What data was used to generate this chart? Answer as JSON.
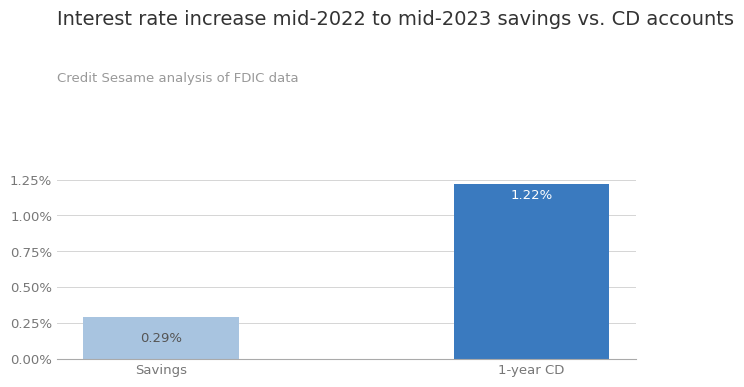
{
  "categories": [
    "Savings",
    "1-year CD"
  ],
  "values": [
    0.0029,
    0.0122
  ],
  "bar_colors": [
    "#a8c4e0",
    "#3a7abf"
  ],
  "bar_labels": [
    "0.29%",
    "1.22%"
  ],
  "label_colors": [
    "#555555",
    "#ffffff"
  ],
  "title": "Interest rate increase mid-2022 to mid-2023 savings vs. CD accounts",
  "subtitle": "Credit Sesame analysis of FDIC data",
  "title_fontsize": 14,
  "subtitle_fontsize": 9.5,
  "tick_label_fontsize": 9.5,
  "bar_label_fontsize": 9.5,
  "xlabel_fontsize": 9.5,
  "ylim": [
    0,
    0.0143
  ],
  "yticks": [
    0.0,
    0.0025,
    0.005,
    0.0075,
    0.01,
    0.0125
  ],
  "ytick_labels": [
    "0.00%",
    "0.25%",
    "0.50%",
    "0.75%",
    "1.00%",
    "1.25%"
  ],
  "background_color": "#ffffff",
  "grid_color": "#d5d5d5",
  "bar_width": 0.42,
  "title_color": "#333333",
  "subtitle_color": "#999999"
}
